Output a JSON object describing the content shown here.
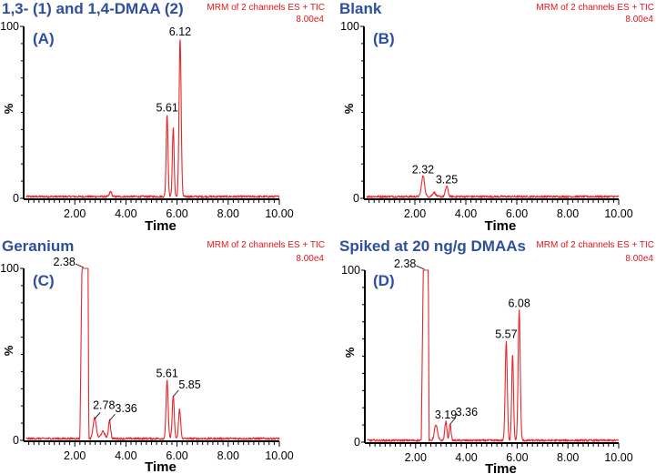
{
  "chart_data": [
    {
      "type": "line",
      "id": "A",
      "title": "1,3- (1) and 1,4-DMAA (2)",
      "panel_label": "(A)",
      "header": "MRM of 2 channels ES + TIC",
      "intensity_scale": "8.00e4",
      "xlabel": "Time",
      "ylabel": "%",
      "xlim": [
        0,
        10
      ],
      "ylim": [
        0,
        100
      ],
      "x_ticks": [
        "2.00",
        "4.00",
        "6.00",
        "8.00",
        "10.00"
      ],
      "y_ticks": [
        "0",
        "100"
      ],
      "baseline": 1,
      "peaks": [
        {
          "rt": 3.4,
          "height": 3,
          "width": 0.04
        },
        {
          "rt": 5.61,
          "height": 48,
          "width": 0.035
        },
        {
          "rt": 5.85,
          "height": 40,
          "width": 0.035
        },
        {
          "rt": 6.12,
          "height": 92,
          "width": 0.04
        }
      ],
      "annotations": [
        {
          "text": "5.61",
          "rt": 5.61,
          "y": 48
        },
        {
          "text": "6.12",
          "rt": 6.12,
          "y": 92
        }
      ]
    },
    {
      "type": "line",
      "id": "B",
      "title": "Blank",
      "panel_label": "(B)",
      "header": "MRM of 2 channels ES + TIC",
      "intensity_scale": "8.00e4",
      "xlabel": "Time",
      "ylabel": "%",
      "xlim": [
        0,
        10
      ],
      "ylim": [
        0,
        100
      ],
      "x_ticks": [
        "2.00",
        "4.00",
        "6.00",
        "8.00",
        "10.00"
      ],
      "y_ticks": [
        "0",
        "100"
      ],
      "baseline": 1,
      "peaks": [
        {
          "rt": 2.32,
          "height": 12,
          "width": 0.06
        },
        {
          "rt": 2.75,
          "height": 2.5,
          "width": 0.06
        },
        {
          "rt": 3.25,
          "height": 6,
          "width": 0.05
        }
      ],
      "annotations": [
        {
          "text": "2.32",
          "rt": 2.32,
          "y": 12
        },
        {
          "text": "3.25",
          "rt": 3.25,
          "y": 6
        }
      ]
    },
    {
      "type": "line",
      "id": "C",
      "title": "Geranium",
      "panel_label": "(C)",
      "header": "MRM of 2 channels ES + TIC",
      "intensity_scale": "8.00e4",
      "xlabel": "Time",
      "ylabel": "%",
      "xlim": [
        0,
        10
      ],
      "ylim": [
        0,
        100
      ],
      "x_ticks": [
        "2.00",
        "4.00",
        "6.00",
        "8.00",
        "10.00"
      ],
      "y_ticks": [
        "0",
        "100"
      ],
      "baseline": 1,
      "saturated": {
        "rt_start": 2.28,
        "rt_end": 2.52,
        "height": 100
      },
      "peaks": [
        {
          "rt": 2.78,
          "height": 12,
          "width": 0.06
        },
        {
          "rt": 3.1,
          "height": 4,
          "width": 0.08
        },
        {
          "rt": 3.36,
          "height": 11,
          "width": 0.04
        },
        {
          "rt": 5.61,
          "height": 34,
          "width": 0.04
        },
        {
          "rt": 5.85,
          "height": 25,
          "width": 0.04
        },
        {
          "rt": 6.1,
          "height": 17,
          "width": 0.04
        }
      ],
      "annotations": [
        {
          "text": "2.38",
          "rt": 2.38,
          "y": 100,
          "leader": true
        },
        {
          "text": "2.78",
          "rt": 2.78,
          "y": 12,
          "leader": true
        },
        {
          "text": "3.36",
          "rt": 3.36,
          "y": 11,
          "leader": true
        },
        {
          "text": "5.61",
          "rt": 5.61,
          "y": 34
        },
        {
          "text": "5.85",
          "rt": 5.85,
          "y": 25,
          "leader": true
        }
      ]
    },
    {
      "type": "line",
      "id": "D",
      "title": "Spiked at 20 ng/g DMAAs",
      "panel_label": "(D)",
      "header": "MRM of 2 channels ES + TIC",
      "intensity_scale": "8.00e4",
      "xlabel": "Time",
      "ylabel": "%",
      "xlim": [
        0,
        10
      ],
      "ylim": [
        0,
        100
      ],
      "x_ticks": [
        "2.00",
        "4.00",
        "6.00",
        "8.00",
        "10.00"
      ],
      "y_ticks": [
        "0",
        "100"
      ],
      "baseline": 1,
      "saturated": {
        "rt_start": 2.3,
        "rt_end": 2.5,
        "height": 100
      },
      "peaks": [
        {
          "rt": 2.8,
          "height": 9,
          "width": 0.06
        },
        {
          "rt": 3.19,
          "height": 11,
          "width": 0.04
        },
        {
          "rt": 3.36,
          "height": 10,
          "width": 0.035
        },
        {
          "rt": 5.57,
          "height": 58,
          "width": 0.04
        },
        {
          "rt": 5.82,
          "height": 50,
          "width": 0.035
        },
        {
          "rt": 6.08,
          "height": 76,
          "width": 0.04
        }
      ],
      "annotations": [
        {
          "text": "2.38",
          "rt": 2.38,
          "y": 100,
          "leader": true
        },
        {
          "text": "3.19",
          "rt": 3.19,
          "y": 11
        },
        {
          "text": "3.36",
          "rt": 3.36,
          "y": 10,
          "leader": true
        },
        {
          "text": "5.57",
          "rt": 5.57,
          "y": 58
        },
        {
          "text": "6.08",
          "rt": 6.08,
          "y": 76
        }
      ]
    }
  ]
}
